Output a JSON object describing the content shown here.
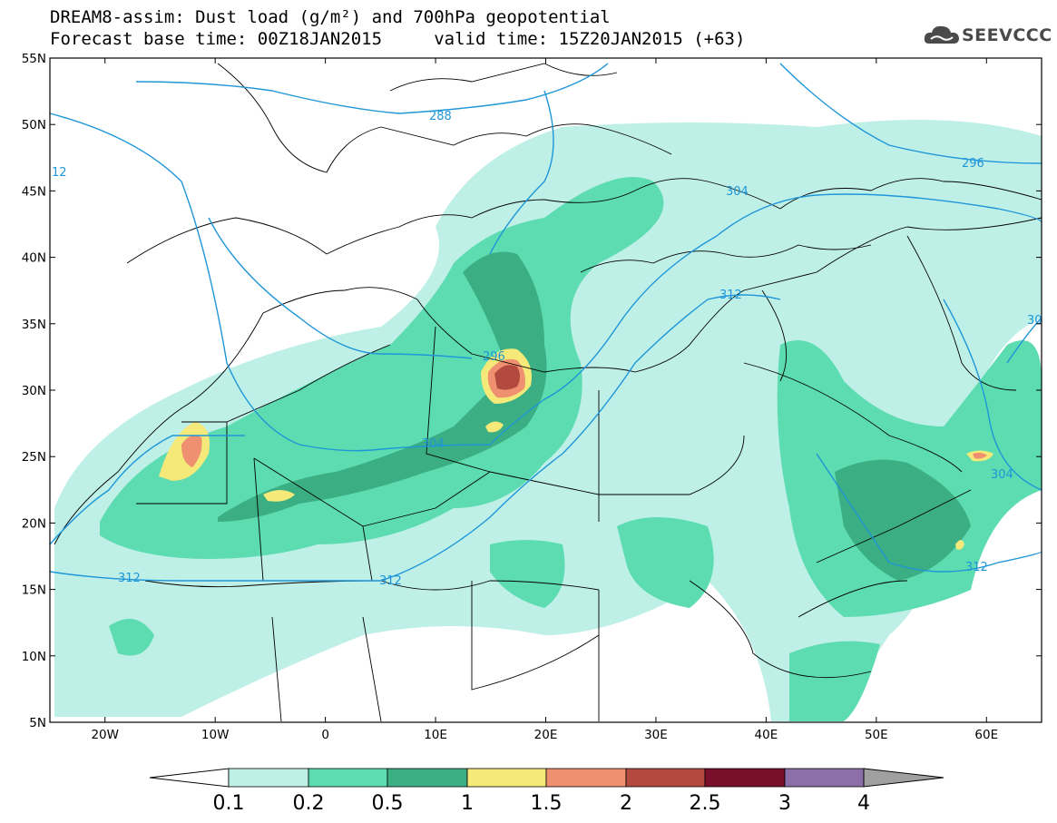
{
  "title": {
    "line1": "DREAM8-assim: Dust load (g/m²) and 700hPa geopotential",
    "line2": "Forecast base time: 00Z18JAN2015     valid time: 15Z20JAN2015 (+63)"
  },
  "logo": {
    "text": "SEEVCCC",
    "icon": "cloud-icon"
  },
  "map": {
    "lon_range": [
      -25,
      65
    ],
    "lat_range": [
      5,
      55
    ],
    "lat_labels": [
      "55N",
      "50N",
      "45N",
      "40N",
      "35N",
      "30N",
      "25N",
      "20N",
      "15N",
      "10N",
      "5N"
    ],
    "lon_labels": [
      "20W",
      "10W",
      "0",
      "10E",
      "20E",
      "30E",
      "40E",
      "50E",
      "60E"
    ]
  },
  "contours": {
    "color": "#1e96d8",
    "labels": [
      "288",
      "296",
      "304",
      "312",
      "12",
      "296",
      "304",
      "312",
      "304",
      "312",
      "30"
    ]
  },
  "colorbar": {
    "levels": [
      "0.1",
      "0.2",
      "0.5",
      "1",
      "1.5",
      "2",
      "2.5",
      "3",
      "4"
    ],
    "colors": [
      "#bff0e8",
      "#5cdcb0",
      "#3cae84",
      "#f5e97a",
      "#ef9070",
      "#b34a40",
      "#7a0f2a",
      "#8c6ea8",
      "#a0a0a0"
    ]
  }
}
